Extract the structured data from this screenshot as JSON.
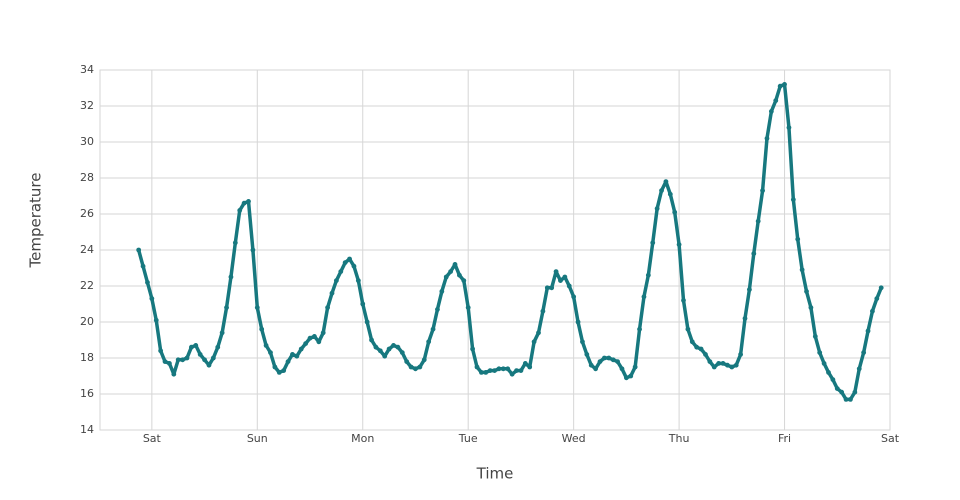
{
  "chart_data": {
    "type": "line",
    "xlabel": "Time",
    "ylabel": "Temperature",
    "x": [
      -3,
      -2,
      -1,
      0,
      1,
      2,
      3,
      4,
      5,
      6,
      7,
      8,
      9,
      10,
      11,
      12,
      13,
      14,
      15,
      16,
      17,
      18,
      19,
      20,
      21,
      22,
      23,
      24,
      25,
      26,
      27,
      28,
      29,
      30,
      31,
      32,
      33,
      34,
      35,
      36,
      37,
      38,
      39,
      40,
      41,
      42,
      43,
      44,
      45,
      46,
      47,
      48,
      49,
      50,
      51,
      52,
      53,
      54,
      55,
      56,
      57,
      58,
      59,
      60,
      61,
      62,
      63,
      64,
      65,
      66,
      67,
      68,
      69,
      70,
      71,
      72,
      73,
      74,
      75,
      76,
      77,
      78,
      79,
      80,
      81,
      82,
      83,
      84,
      85,
      86,
      87,
      88,
      89,
      90,
      91,
      92,
      93,
      94,
      95,
      96,
      97,
      98,
      99,
      100,
      101,
      102,
      103,
      104,
      105,
      106,
      107,
      108,
      109,
      110,
      111,
      112,
      113,
      114,
      115,
      116,
      117,
      118,
      119,
      120,
      121,
      122,
      123,
      124,
      125,
      126,
      127,
      128,
      129,
      130,
      131,
      132,
      133,
      134,
      135,
      136,
      137,
      138,
      139,
      140,
      141,
      142,
      143,
      144,
      145,
      146,
      147,
      148,
      149,
      150,
      151,
      152,
      153,
      154,
      155,
      156,
      157,
      158,
      159,
      160,
      161,
      162,
      163,
      164,
      165,
      166
    ],
    "series": [
      {
        "color": "#17787f",
        "values": [
          24.0,
          23.1,
          22.2,
          21.3,
          20.1,
          18.4,
          17.8,
          17.7,
          17.1,
          17.9,
          17.9,
          18.0,
          18.6,
          18.7,
          18.2,
          17.9,
          17.6,
          18.0,
          18.6,
          19.4,
          20.8,
          22.5,
          24.4,
          26.2,
          26.6,
          26.7,
          24.0,
          20.8,
          19.6,
          18.7,
          18.3,
          17.5,
          17.2,
          17.3,
          17.8,
          18.2,
          18.1,
          18.5,
          18.8,
          19.1,
          19.2,
          18.9,
          19.4,
          20.8,
          21.6,
          22.3,
          22.8,
          23.3,
          23.5,
          23.1,
          22.3,
          21.0,
          20.0,
          19.0,
          18.6,
          18.4,
          18.1,
          18.5,
          18.7,
          18.6,
          18.3,
          17.8,
          17.5,
          17.4,
          17.5,
          17.9,
          18.9,
          19.6,
          20.7,
          21.7,
          22.5,
          22.8,
          23.2,
          22.6,
          22.3,
          20.8,
          18.5,
          17.5,
          17.2,
          17.2,
          17.3,
          17.3,
          17.4,
          17.4,
          17.4,
          17.1,
          17.3,
          17.3,
          17.7,
          17.5,
          18.9,
          19.4,
          20.6,
          21.9,
          21.9,
          22.8,
          22.3,
          22.5,
          22.0,
          21.4,
          20.0,
          18.9,
          18.2,
          17.6,
          17.4,
          17.8,
          18.0,
          18.0,
          17.9,
          17.8,
          17.4,
          16.9,
          17.0,
          17.5,
          19.6,
          21.4,
          22.6,
          24.4,
          26.3,
          27.3,
          27.8,
          27.1,
          26.1,
          24.3,
          21.2,
          19.6,
          18.9,
          18.6,
          18.5,
          18.2,
          17.8,
          17.5,
          17.7,
          17.7,
          17.6,
          17.5,
          17.6,
          18.2,
          20.2,
          21.8,
          23.8,
          25.6,
          27.3,
          30.2,
          31.7,
          32.3,
          33.1,
          33.2,
          30.8,
          26.8,
          24.6,
          22.9,
          21.7,
          20.8,
          19.2,
          18.3,
          17.7,
          17.2,
          16.8,
          16.3,
          16.1,
          15.7,
          15.7,
          16.1,
          17.4,
          18.3,
          19.5,
          20.6,
          21.3,
          21.9
        ]
      }
    ],
    "xlim": [
      -11.8,
      168
    ],
    "xticks": [
      {
        "value": 0,
        "label": "Sat"
      },
      {
        "value": 24,
        "label": "Sun"
      },
      {
        "value": 48,
        "label": "Mon"
      },
      {
        "value": 72,
        "label": "Tue"
      },
      {
        "value": 96,
        "label": "Wed"
      },
      {
        "value": 120,
        "label": "Thu"
      },
      {
        "value": 144,
        "label": "Fri"
      },
      {
        "value": 168,
        "label": "Sat"
      }
    ],
    "ylim": [
      14,
      34
    ],
    "yticks": [
      14,
      16,
      18,
      20,
      22,
      24,
      26,
      28,
      30,
      32,
      34
    ],
    "grid": true
  }
}
